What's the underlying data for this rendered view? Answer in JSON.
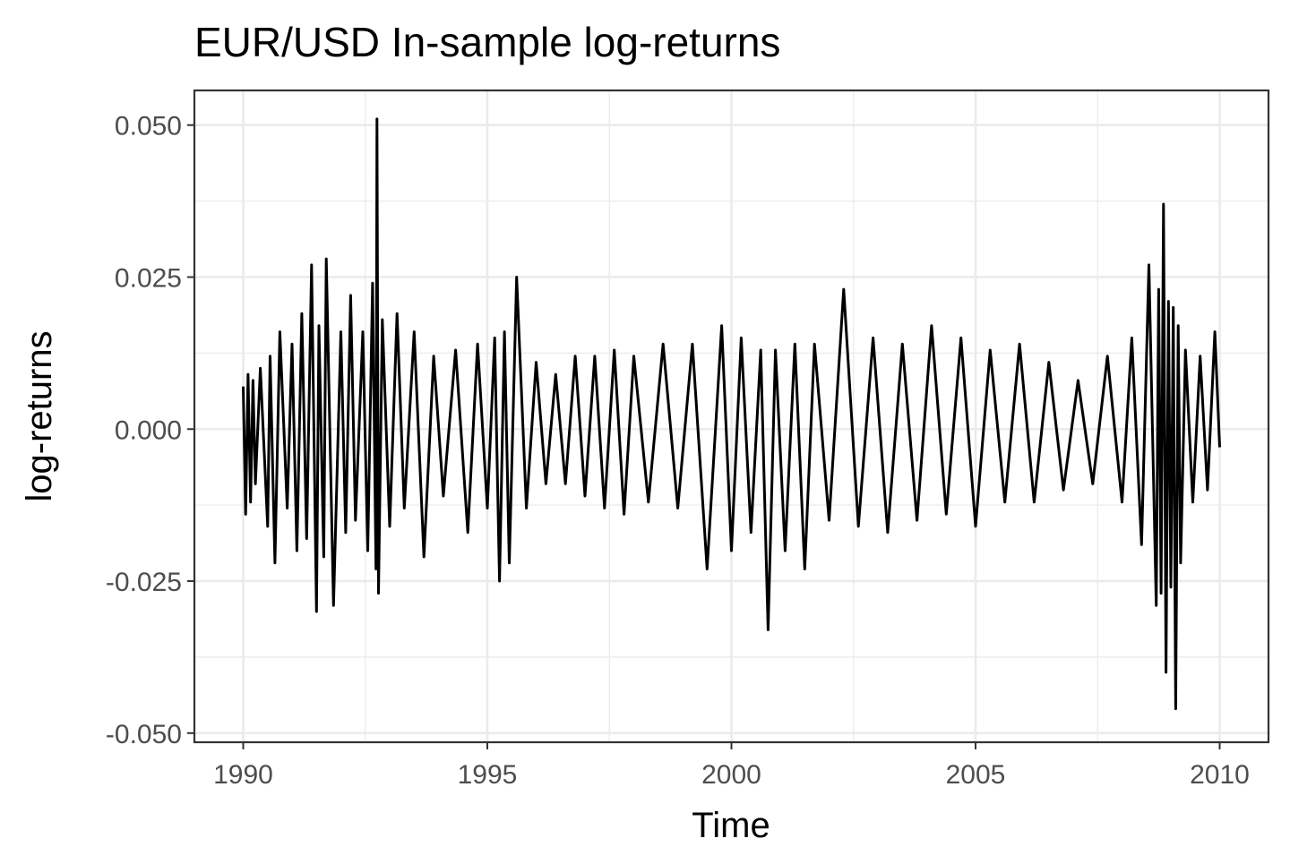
{
  "chart_data": {
    "type": "line",
    "title": "EUR/USD In-sample log-returns",
    "xlabel": "Time",
    "ylabel": "log-returns",
    "xlim": [
      1989.0,
      2011.0
    ],
    "ylim": [
      -0.0515,
      0.0557
    ],
    "x_ticks": [
      1990,
      1995,
      2000,
      2005,
      2010
    ],
    "x_tick_labels": [
      "1990",
      "1995",
      "2000",
      "2005",
      "2010"
    ],
    "y_ticks": [
      -0.05,
      -0.025,
      0.0,
      0.025,
      0.05
    ],
    "y_tick_labels": [
      "-0.050",
      "-0.025",
      "0.000",
      "0.025",
      "0.050"
    ],
    "grid": true,
    "legend": "none",
    "series": [
      {
        "color": "#000000",
        "x": [
          1990.0,
          1990.05,
          1990.1,
          1990.15,
          1990.2,
          1990.25,
          1990.35,
          1990.5,
          1990.55,
          1990.65,
          1990.75,
          1990.9,
          1991.0,
          1991.1,
          1991.2,
          1991.3,
          1991.4,
          1991.5,
          1991.55,
          1991.65,
          1991.7,
          1991.85,
          1992.0,
          1992.1,
          1992.2,
          1992.3,
          1992.45,
          1992.55,
          1992.65,
          1992.72,
          1992.74,
          1992.77,
          1992.85,
          1993.0,
          1993.15,
          1993.3,
          1993.5,
          1993.7,
          1993.9,
          1994.1,
          1994.35,
          1994.6,
          1994.8,
          1995.0,
          1995.15,
          1995.25,
          1995.35,
          1995.45,
          1995.6,
          1995.8,
          1996.0,
          1996.2,
          1996.4,
          1996.6,
          1996.8,
          1997.0,
          1997.2,
          1997.4,
          1997.6,
          1997.8,
          1998.0,
          1998.3,
          1998.6,
          1998.9,
          1999.2,
          1999.5,
          1999.8,
          2000.0,
          2000.2,
          2000.4,
          2000.6,
          2000.75,
          2000.9,
          2001.1,
          2001.3,
          2001.5,
          2001.7,
          2002.0,
          2002.3,
          2002.6,
          2002.9,
          2003.2,
          2003.5,
          2003.8,
          2004.1,
          2004.4,
          2004.7,
          2005.0,
          2005.3,
          2005.6,
          2005.9,
          2006.2,
          2006.5,
          2006.8,
          2007.1,
          2007.4,
          2007.7,
          2008.0,
          2008.2,
          2008.4,
          2008.55,
          2008.7,
          2008.75,
          2008.8,
          2008.85,
          2008.9,
          2008.95,
          2009.0,
          2009.05,
          2009.1,
          2009.15,
          2009.2,
          2009.3,
          2009.45,
          2009.6,
          2009.75,
          2009.9,
          2010.0
        ],
        "y": [
          0.007,
          -0.014,
          0.009,
          -0.012,
          0.008,
          -0.009,
          0.01,
          -0.016,
          0.012,
          -0.022,
          0.016,
          -0.013,
          0.014,
          -0.02,
          0.019,
          -0.018,
          0.027,
          -0.03,
          0.017,
          -0.021,
          0.028,
          -0.029,
          0.016,
          -0.017,
          0.022,
          -0.015,
          0.016,
          -0.02,
          0.024,
          -0.023,
          0.051,
          -0.027,
          0.018,
          -0.016,
          0.019,
          -0.013,
          0.016,
          -0.021,
          0.012,
          -0.011,
          0.013,
          -0.017,
          0.014,
          -0.013,
          0.015,
          -0.025,
          0.016,
          -0.022,
          0.025,
          -0.013,
          0.011,
          -0.009,
          0.009,
          -0.009,
          0.012,
          -0.011,
          0.012,
          -0.013,
          0.013,
          -0.014,
          0.012,
          -0.012,
          0.014,
          -0.013,
          0.014,
          -0.023,
          0.017,
          -0.02,
          0.015,
          -0.017,
          0.013,
          -0.033,
          0.013,
          -0.02,
          0.014,
          -0.023,
          0.014,
          -0.015,
          0.023,
          -0.016,
          0.015,
          -0.017,
          0.014,
          -0.015,
          0.017,
          -0.014,
          0.015,
          -0.016,
          0.013,
          -0.012,
          0.014,
          -0.012,
          0.011,
          -0.01,
          0.008,
          -0.009,
          0.012,
          -0.012,
          0.015,
          -0.019,
          0.027,
          -0.029,
          0.023,
          -0.027,
          0.037,
          -0.04,
          0.021,
          -0.026,
          0.02,
          -0.046,
          0.017,
          -0.022,
          0.013,
          -0.012,
          0.012,
          -0.01,
          0.016,
          -0.003
        ]
      }
    ]
  }
}
